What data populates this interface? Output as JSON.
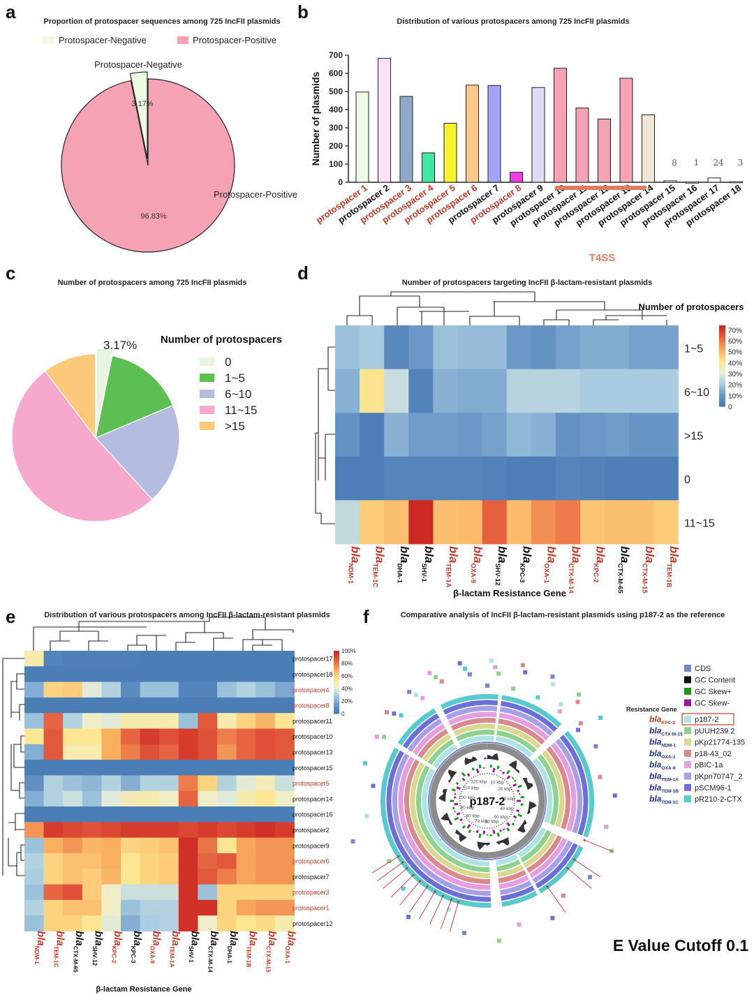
{
  "panels": {
    "a": {
      "label": "a",
      "title": "Proportion of protospacer sequences among 725 IncFII plasmids"
    },
    "b": {
      "label": "b",
      "title": "Distribution of various protospacers among 725 IncFII plasmids"
    },
    "c": {
      "label": "c",
      "title": "Number of protospacers among 725 IncFII plasmids"
    },
    "d": {
      "label": "d",
      "title": "Number of protospacers targeting IncFII β-lactam-resistant plasmids"
    },
    "e": {
      "label": "e",
      "title": "Distribution of various protospacers among IncFII β-lactam-resistant plasmids"
    },
    "f": {
      "label": "f",
      "title": "Comparative analysis of IncFII β-lactam-resistant plasmids using p187-2 as the reference"
    }
  },
  "chart_data": [
    {
      "id": "a",
      "type": "pie",
      "title": "Proportion of protospacer sequences among 725 IncFII plasmids",
      "legend": [
        "Protospacer-Negative",
        "Protospacer-Positive"
      ],
      "legend_position": "top",
      "slices": [
        {
          "name": "Protospacer-Negative",
          "value": 3.17,
          "label": "3.17%",
          "color": "#eefbe3"
        },
        {
          "name": "Protospacer-Positive",
          "value": 96.83,
          "label": "96.83%",
          "color": "#f5a3b4"
        }
      ]
    },
    {
      "id": "b",
      "type": "bar",
      "title": "Distribution of various protospacers among 725 IncFII plasmids",
      "ylabel": "Number of plasmids",
      "ylim": [
        0,
        700
      ],
      "yticks": [
        "0",
        "100",
        "200",
        "300",
        "400",
        "500",
        "600",
        "700"
      ],
      "categories": [
        "protospacer 1",
        "protospacer 2",
        "protospacer 3",
        "protospacer 4",
        "protospacer 5",
        "protospacer 6",
        "protospacer 7",
        "protospacer 8",
        "protospacer 9",
        "protospacer 10",
        "protospacer 11",
        "protospacer 12",
        "protospacer 13",
        "protospacer 14",
        "protospacer 15",
        "protospacer 16",
        "protospacer 17",
        "protospacer 18"
      ],
      "values": [
        497,
        683,
        473,
        162,
        325,
        535,
        533,
        55,
        522,
        628,
        409,
        348,
        573,
        371,
        8,
        1,
        24,
        3
      ],
      "value_labels": [
        "",
        "",
        "",
        "",
        "",
        "",
        "",
        "",
        "",
        "",
        "",
        "",
        "",
        "",
        "8",
        "1",
        "24",
        "3"
      ],
      "bar_colors": [
        "#eefbe3",
        "#fde0f3",
        "#8ea9c8",
        "#3de8a0",
        "#f7f22c",
        "#fbc98d",
        "#a5a2fa",
        "#ee3ce8",
        "#dcdcf5",
        "#f4a2b4",
        "#f4a2b4",
        "#f4a2b4",
        "#f4a2b4",
        "#ede7d3",
        "#ffffff",
        "#ffffff",
        "#ffffff",
        "#ffffff"
      ],
      "label_colors": [
        "#c0392b",
        "#111111",
        "#c0392b",
        "#c0392b",
        "#c0392b",
        "#c0392b",
        "#111111",
        "#c0392b",
        "#111111",
        "#111111",
        "#111111",
        "#111111",
        "#111111",
        "#111111",
        "#111111",
        "#111111",
        "#111111",
        "#111111"
      ],
      "annotation": {
        "text": "T4SS",
        "from_index": 9,
        "to_index": 12,
        "color": "#e07b62"
      }
    },
    {
      "id": "c",
      "type": "pie",
      "title": "Number of protospacers among 725 IncFII plasmids",
      "legend_title": "Number of protospacers",
      "legend_position": "right",
      "slices": [
        {
          "name": "0",
          "value": 3.17,
          "label": "3.17%",
          "color": "#e5f5df"
        },
        {
          "name": "1~5",
          "value": 15.5,
          "color": "#5cbf52"
        },
        {
          "name": "6~10",
          "value": 19.5,
          "color": "#b4bde0"
        },
        {
          "name": "11~15",
          "value": 51.5,
          "color": "#f7a9cd"
        },
        {
          "name": ">15",
          "value": 10.33,
          "color": "#fcc97a"
        }
      ]
    },
    {
      "id": "d",
      "type": "heatmap",
      "title": "Number of protospacers targeting IncFII β-lactam-resistant plasmids",
      "xlabel": "β-lactam Resistance Gene",
      "legend_title": "Number of protospacers",
      "colorbar_ticks": [
        "0",
        "10%",
        "20%",
        "30%",
        "40%",
        "50%",
        "60%",
        "70%"
      ],
      "vmax": 72,
      "columns": [
        {
          "main": "bla",
          "sub": "NDM-1",
          "color": "#c0392b"
        },
        {
          "main": "bla",
          "sub": "TEM-1C",
          "color": "#c0392b"
        },
        {
          "main": "bla",
          "sub": "DHA-1",
          "color": "#111111"
        },
        {
          "main": "bla",
          "sub": "SHV-1",
          "color": "#111111"
        },
        {
          "main": "bla",
          "sub": "TEM-1A",
          "color": "#c0392b"
        },
        {
          "main": "bla",
          "sub": "OXA-9",
          "color": "#c0392b"
        },
        {
          "main": "bla",
          "sub": "SHV-12",
          "color": "#111111"
        },
        {
          "main": "bla",
          "sub": "KPC-3",
          "color": "#111111"
        },
        {
          "main": "bla",
          "sub": "OXA-1",
          "color": "#c0392b"
        },
        {
          "main": "bla",
          "sub": "CTX-M-14",
          "color": "#c0392b"
        },
        {
          "main": "bla",
          "sub": "KPC-2",
          "color": "#c0392b"
        },
        {
          "main": "bla",
          "sub": "CTX-M-65",
          "color": "#111111"
        },
        {
          "main": "bla",
          "sub": "CTX-M-15",
          "color": "#c0392b"
        },
        {
          "main": "bla",
          "sub": "TEM-1B",
          "color": "#c0392b"
        }
      ],
      "rows": [
        "1~5",
        "6~10",
        ">15",
        "0",
        "11~15"
      ],
      "values": [
        [
          18,
          20,
          5,
          10,
          18,
          17,
          17,
          10,
          8,
          12,
          14,
          14,
          12,
          12
        ],
        [
          15,
          40,
          25,
          3,
          15,
          14,
          14,
          22,
          22,
          22,
          20,
          20,
          20,
          20
        ],
        [
          8,
          2,
          15,
          11,
          11,
          10,
          12,
          16,
          15,
          8,
          10,
          11,
          9,
          9
        ],
        [
          2,
          2,
          4,
          4,
          4,
          4,
          3,
          2,
          2,
          4,
          3,
          2,
          2,
          2
        ],
        [
          24,
          45,
          47,
          72,
          47,
          48,
          62,
          48,
          55,
          58,
          46,
          47,
          47,
          45
        ]
      ]
    },
    {
      "id": "e",
      "type": "heatmap",
      "title": "Distribution of various protospacers among IncFII β-lactam-resistant plasmids",
      "xlabel": "β-lactam Resistance Gene",
      "colorbar_ticks": [
        "0",
        "20%",
        "40%",
        "60%",
        "80%",
        "100%"
      ],
      "vmax": 100,
      "columns": [
        {
          "main": "bla",
          "sub": "NDM-1",
          "color": "#c0392b"
        },
        {
          "main": "bla",
          "sub": "TEM-1C",
          "color": "#c0392b"
        },
        {
          "main": "bla",
          "sub": "CTX-M-65",
          "color": "#111111"
        },
        {
          "main": "bla",
          "sub": "SHV-12",
          "color": "#111111"
        },
        {
          "main": "bla",
          "sub": "KPC-2",
          "color": "#c0392b"
        },
        {
          "main": "bla",
          "sub": "KPC-3",
          "color": "#111111"
        },
        {
          "main": "bla",
          "sub": "OXA-9",
          "color": "#c0392b"
        },
        {
          "main": "bla",
          "sub": "TEM-1A",
          "color": "#c0392b"
        },
        {
          "main": "bla",
          "sub": "SHV-1",
          "color": "#111111"
        },
        {
          "main": "bla",
          "sub": "CTX-M-14",
          "color": "#111111"
        },
        {
          "main": "bla",
          "sub": "DHA-1",
          "color": "#111111"
        },
        {
          "main": "bla",
          "sub": "TEM-1B",
          "color": "#c0392b"
        },
        {
          "main": "bla",
          "sub": "CTX-M-15",
          "color": "#c0392b"
        },
        {
          "main": "bla",
          "sub": "OXA-1",
          "color": "#c0392b"
        }
      ],
      "rows": [
        {
          "name": "protospacer17",
          "color": "#111111"
        },
        {
          "name": "protospacer18",
          "color": "#111111"
        },
        {
          "name": "protospacer4",
          "color": "#c0392b"
        },
        {
          "name": "protospacer8",
          "color": "#c0392b"
        },
        {
          "name": "protospacer11",
          "color": "#111111"
        },
        {
          "name": "protospacer10",
          "color": "#111111"
        },
        {
          "name": "protospacer13",
          "color": "#111111"
        },
        {
          "name": "protospacer15",
          "color": "#111111"
        },
        {
          "name": "protospacer5",
          "color": "#c0392b"
        },
        {
          "name": "protospacer14",
          "color": "#111111"
        },
        {
          "name": "protospacer16",
          "color": "#111111"
        },
        {
          "name": "protospacer2",
          "color": "#111111"
        },
        {
          "name": "protospacer9",
          "color": "#111111"
        },
        {
          "name": "protospacer6",
          "color": "#c0392b"
        },
        {
          "name": "protospacer7",
          "color": "#111111"
        },
        {
          "name": "protospacer3",
          "color": "#c0392b"
        },
        {
          "name": "protospacer1",
          "color": "#c0392b"
        },
        {
          "name": "protospacer12",
          "color": "#111111"
        }
      ],
      "values": [
        [
          50,
          5,
          3,
          3,
          3,
          3,
          2,
          2,
          2,
          2,
          2,
          2,
          2,
          2
        ],
        [
          2,
          2,
          2,
          2,
          2,
          2,
          2,
          2,
          2,
          2,
          2,
          2,
          2,
          2
        ],
        [
          20,
          60,
          62,
          40,
          30,
          8,
          25,
          25,
          5,
          5,
          25,
          30,
          25,
          18
        ],
        [
          2,
          2,
          2,
          2,
          2,
          2,
          2,
          2,
          2,
          2,
          2,
          2,
          2,
          2
        ],
        [
          25,
          85,
          30,
          45,
          40,
          50,
          50,
          50,
          25,
          88,
          50,
          60,
          68,
          55
        ],
        [
          55,
          88,
          55,
          55,
          70,
          85,
          95,
          90,
          95,
          90,
          80,
          85,
          90,
          88
        ],
        [
          20,
          88,
          50,
          50,
          70,
          80,
          90,
          85,
          95,
          90,
          75,
          85,
          90,
          88
        ],
        [
          2,
          2,
          2,
          2,
          2,
          2,
          2,
          2,
          2,
          2,
          2,
          2,
          2,
          2
        ],
        [
          10,
          30,
          25,
          22,
          30,
          20,
          30,
          30,
          80,
          60,
          30,
          40,
          48,
          35
        ],
        [
          20,
          30,
          35,
          25,
          40,
          48,
          50,
          45,
          85,
          45,
          40,
          50,
          55,
          45
        ],
        [
          2,
          2,
          2,
          2,
          2,
          2,
          2,
          2,
          2,
          2,
          2,
          2,
          2,
          2
        ],
        [
          75,
          95,
          92,
          90,
          92,
          95,
          95,
          95,
          92,
          95,
          92,
          95,
          98,
          95
        ],
        [
          25,
          70,
          75,
          68,
          70,
          60,
          62,
          65,
          98,
          82,
          55,
          72,
          75,
          75
        ],
        [
          30,
          60,
          65,
          65,
          70,
          55,
          60,
          62,
          98,
          85,
          88,
          72,
          75,
          75
        ],
        [
          28,
          60,
          65,
          62,
          68,
          55,
          60,
          62,
          98,
          88,
          80,
          72,
          75,
          75
        ],
        [
          25,
          85,
          90,
          62,
          45,
          35,
          35,
          35,
          98,
          25,
          60,
          60,
          60,
          60
        ],
        [
          30,
          60,
          65,
          65,
          45,
          25,
          30,
          30,
          98,
          98,
          60,
          72,
          75,
          75
        ],
        [
          25,
          60,
          60,
          55,
          40,
          20,
          28,
          30,
          98,
          45,
          60,
          55,
          58,
          50
        ]
      ]
    }
  ],
  "circos": {
    "title": "Comparative analysis of IncFII β-lactam-resistant plasmids using p187-2 as the reference",
    "center_label": "p187-2",
    "tick_labels": [
      "10 kbp",
      "20 kbp",
      "30 kbp",
      "40 kbp",
      "50 kbp",
      "60 kbp",
      "70 kbp",
      "80 kbp",
      "90 kbp",
      "100 kbp",
      "110 kbp",
      "120 kbp"
    ],
    "legend_items": [
      {
        "name": "CDS",
        "color": "#7b86c9"
      },
      {
        "name": "GC Content",
        "color": "#111111"
      },
      {
        "name": "GC Skew+",
        "color": "#1a9a1a"
      },
      {
        "name": "GC Skew-",
        "color": "#9b1a9b"
      }
    ],
    "resistance_title": "Resistance Gene",
    "rings": [
      {
        "gene_main": "bla",
        "gene_sub": "KPC-2",
        "gene_color": "#c0392b",
        "plasmid": "p187-2",
        "color": "#aee3e6",
        "boxed": true
      },
      {
        "gene_main": "bla",
        "gene_sub": "CTX-M-15",
        "gene_color": "#1f2f8f",
        "plasmid": "pUUH239.2",
        "color": "#8fd18f"
      },
      {
        "gene_main": "bla",
        "gene_sub": "NDM-1",
        "gene_color": "#1f2f8f",
        "plasmid": "pKp21774-135",
        "color": "#d8d88f"
      },
      {
        "gene_main": "bla",
        "gene_sub": "OXA-1",
        "gene_color": "#1f2f8f",
        "plasmid": "p18-43_02",
        "color": "#d98a8f"
      },
      {
        "gene_main": "bla",
        "gene_sub": "OXA-9",
        "gene_color": "#1f2f8f",
        "plasmid": "pBIC-1a",
        "color": "#e59ee0"
      },
      {
        "gene_main": "bla",
        "gene_sub": "TEM-1A",
        "gene_color": "#1f2f8f",
        "plasmid": "pKpn70747_2",
        "color": "#a7a0e8"
      },
      {
        "gene_main": "bla",
        "gene_sub": "TEM-1B",
        "gene_color": "#1f2f8f",
        "plasmid": "pSCM96-1",
        "color": "#6b6fd6"
      },
      {
        "gene_main": "bla",
        "gene_sub": "TEM-1C",
        "gene_color": "#1f2f8f",
        "plasmid": "pR210-2-CTX",
        "color": "#58c9cc"
      }
    ],
    "footer": "E Value Cutoff 0.1"
  }
}
